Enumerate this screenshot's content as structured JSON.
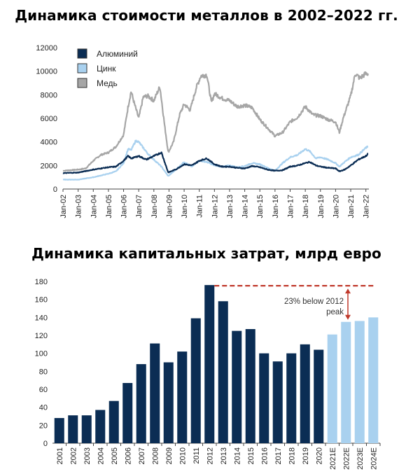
{
  "chart_data": [
    {
      "type": "line",
      "title": "Динамика стоимости металлов в 2002–2022 гг.",
      "ylim": [
        0,
        12000
      ],
      "yticks": [
        0,
        2000,
        4000,
        6000,
        8000,
        10000,
        12000
      ],
      "x_tick_labels": [
        "Jan-02",
        "Jan-03",
        "Jan-04",
        "Jan-05",
        "Jan-06",
        "Jan-07",
        "Jan-08",
        "Jan-09",
        "Jan-10",
        "Jan-11",
        "Jan-12",
        "Jan-13",
        "Jan-14",
        "Jan-15",
        "Jan-16",
        "Jan-17",
        "Jan-18",
        "Jan-19",
        "Jan-20",
        "Jan-21",
        "Jan-22"
      ],
      "x_start_year": 2002,
      "x_end_year": 2022.2,
      "legend_position": "top-left",
      "grid": false,
      "series": [
        {
          "name": "Медь",
          "color": "#a6a6a6",
          "x": [
            2002.0,
            2003.0,
            2003.5,
            2004.0,
            2004.5,
            2005.0,
            2005.5,
            2006.0,
            2006.3,
            2006.5,
            2006.7,
            2007.0,
            2007.3,
            2007.6,
            2008.0,
            2008.4,
            2008.7,
            2008.95,
            2009.3,
            2009.7,
            2010.0,
            2010.4,
            2010.8,
            2011.1,
            2011.5,
            2011.8,
            2012.0,
            2012.5,
            2013.0,
            2013.5,
            2014.0,
            2014.5,
            2015.0,
            2015.5,
            2016.0,
            2016.5,
            2017.0,
            2017.5,
            2018.0,
            2018.5,
            2019.0,
            2019.5,
            2020.0,
            2020.25,
            2020.5,
            2021.0,
            2021.3,
            2021.6,
            2021.9,
            2022.0,
            2022.15
          ],
          "y": [
            1550,
            1650,
            1750,
            2400,
            2900,
            3100,
            3600,
            4600,
            7000,
            8300,
            7300,
            6000,
            7800,
            7900,
            7500,
            8700,
            5500,
            3100,
            4000,
            6300,
            7200,
            6700,
            8600,
            9600,
            9700,
            7300,
            8100,
            7700,
            7500,
            7000,
            7100,
            6900,
            5900,
            5200,
            4500,
            4800,
            5700,
            6100,
            7000,
            6300,
            6200,
            5900,
            5700,
            4800,
            6000,
            7900,
            9800,
            9400,
            9700,
            9800,
            9800
          ]
        },
        {
          "name": "Цинк",
          "color": "#a9d1ef",
          "x": [
            2002.0,
            2003.0,
            2004.0,
            2005.0,
            2005.5,
            2006.0,
            2006.3,
            2006.5,
            2006.8,
            2007.0,
            2007.3,
            2007.6,
            2008.0,
            2008.5,
            2008.95,
            2009.5,
            2010.0,
            2010.5,
            2011.0,
            2011.5,
            2012.0,
            2012.5,
            2013.0,
            2013.5,
            2014.0,
            2014.5,
            2015.0,
            2015.5,
            2016.0,
            2016.5,
            2017.0,
            2017.5,
            2018.0,
            2018.3,
            2018.7,
            2019.0,
            2019.5,
            2020.0,
            2020.25,
            2020.6,
            2021.0,
            2021.5,
            2022.0,
            2022.15
          ],
          "y": [
            800,
            800,
            1000,
            1300,
            1500,
            2200,
            3400,
            3300,
            4100,
            4000,
            3500,
            3000,
            2500,
            1900,
            1100,
            1700,
            2300,
            1900,
            2400,
            2300,
            2000,
            1900,
            2000,
            1850,
            1950,
            2200,
            2100,
            1800,
            1550,
            2200,
            2700,
            2900,
            3400,
            3200,
            2600,
            2700,
            2500,
            2200,
            1900,
            2300,
            2700,
            2900,
            3500,
            3600
          ]
        },
        {
          "name": "Алюминий",
          "color": "#0b2d54",
          "x": [
            2002.0,
            2003.0,
            2004.0,
            2005.0,
            2005.5,
            2006.0,
            2006.3,
            2006.5,
            2007.0,
            2007.5,
            2008.0,
            2008.5,
            2008.95,
            2009.5,
            2010.0,
            2010.5,
            2011.0,
            2011.5,
            2012.0,
            2012.5,
            2013.0,
            2013.5,
            2014.0,
            2014.5,
            2015.0,
            2015.5,
            2016.0,
            2016.5,
            2017.0,
            2017.5,
            2018.0,
            2018.3,
            2018.7,
            2019.0,
            2019.5,
            2020.0,
            2020.25,
            2020.6,
            2021.0,
            2021.5,
            2022.0,
            2022.15
          ],
          "y": [
            1350,
            1400,
            1650,
            1850,
            1900,
            2400,
            2800,
            2600,
            2800,
            2500,
            2800,
            3100,
            1400,
            1700,
            2100,
            2000,
            2400,
            2600,
            2100,
            1900,
            1900,
            1800,
            1750,
            1950,
            1850,
            1650,
            1550,
            1600,
            1900,
            2000,
            2200,
            2300,
            2000,
            1900,
            1800,
            1750,
            1500,
            1650,
            2000,
            2500,
            2800,
            3000
          ]
        }
      ]
    },
    {
      "type": "bar",
      "title": "Динамика капитальных затрат, млрд евро",
      "ylim": [
        0,
        180
      ],
      "yticks": [
        0,
        20,
        40,
        60,
        80,
        100,
        120,
        140,
        160,
        180
      ],
      "categories": [
        "2001",
        "2002",
        "2003",
        "2004",
        "2005",
        "2006",
        "2007",
        "2008",
        "2009",
        "2010",
        "2011",
        "2012",
        "2013",
        "2014",
        "2015",
        "2016",
        "2017",
        "2018",
        "2019",
        "2020",
        "2021E",
        "2022E",
        "2023E",
        "2024E"
      ],
      "values": [
        28,
        31,
        31,
        37,
        47,
        67,
        88,
        111,
        90,
        102,
        139,
        176,
        158,
        125,
        127,
        100,
        91,
        100,
        110,
        104,
        121,
        135,
        136,
        140
      ],
      "colors": {
        "actual": "#0b2d54",
        "estimate": "#a9d1ef",
        "annotation": "#c0392b"
      },
      "annotation": {
        "line1": "23% below 2012",
        "line2": "peak"
      }
    }
  ]
}
